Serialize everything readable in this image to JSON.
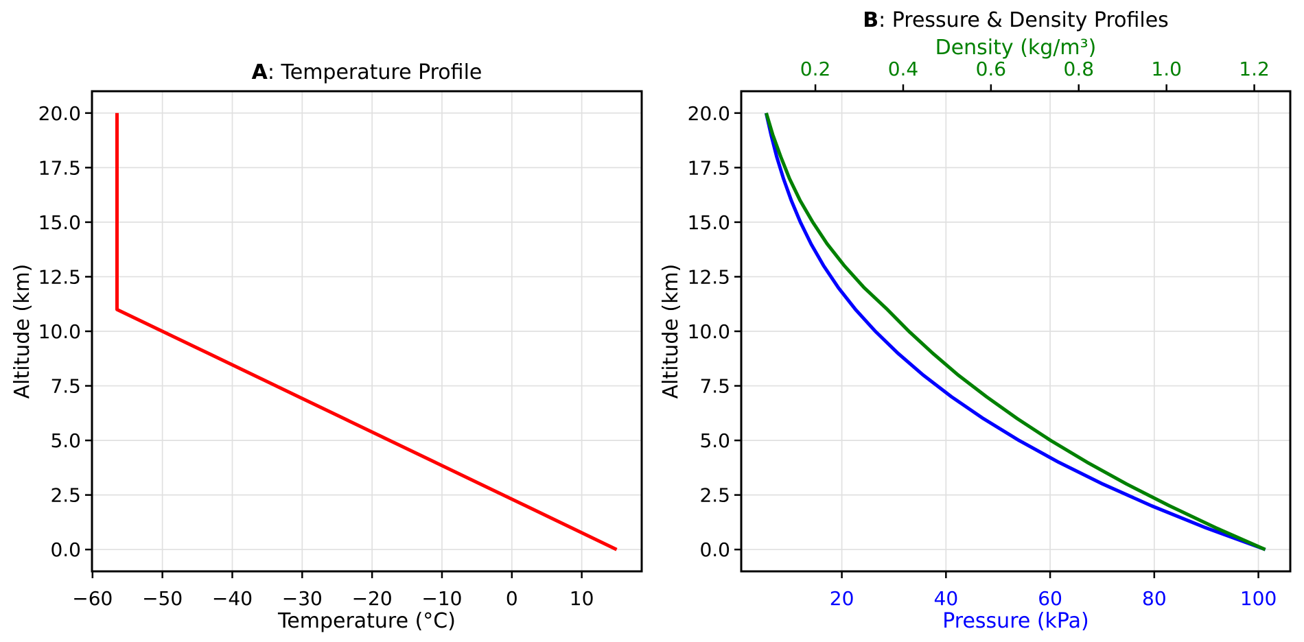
{
  "chart_data": [
    {
      "type": "line",
      "panel": "A",
      "title_prefix": "A",
      "title_rest": ": Temperature Profile",
      "xlabel": "Temperature (°C)",
      "ylabel": "Altitude (km)",
      "grid": true,
      "legend": "none",
      "axes": {
        "bottom": {
          "lim": [
            -60.08,
            18.58
          ],
          "ticks": [
            -60,
            -50,
            -40,
            -30,
            -20,
            -10,
            0,
            10
          ],
          "tick_labels": [
            "−60",
            "−50",
            "−40",
            "−30",
            "−20",
            "−10",
            "0",
            "10"
          ],
          "label_color": "#000000",
          "grid": true
        },
        "left": {
          "lim": [
            -1,
            21
          ],
          "ticks": [
            0,
            2.5,
            5,
            7.5,
            10,
            12.5,
            15,
            17.5,
            20
          ],
          "tick_labels": [
            "0.0",
            "2.5",
            "5.0",
            "7.5",
            "10.0",
            "12.5",
            "15.0",
            "17.5",
            "20.0"
          ],
          "label_color": "#000000",
          "grid": true
        }
      },
      "series": [
        {
          "name": "Temperature",
          "color": "#ff0000",
          "xaxis": "bottom",
          "linewidth": 5,
          "altitude_km": [
            0,
            1,
            2,
            3,
            4,
            5,
            6,
            7,
            8,
            9,
            10,
            11,
            12,
            13,
            14,
            15,
            16,
            17,
            18,
            19,
            20
          ],
          "values": [
            15,
            8.5,
            2,
            -4.5,
            -11,
            -17.5,
            -24,
            -30.5,
            -37,
            -43.5,
            -50,
            -56.5,
            -56.5,
            -56.5,
            -56.5,
            -56.5,
            -56.5,
            -56.5,
            -56.5,
            -56.5,
            -56.5
          ]
        }
      ]
    },
    {
      "type": "line",
      "panel": "B",
      "title_prefix": "B",
      "title_rest": ": Pressure & Density Profiles",
      "xlabel_bottom": "Pressure (kPa)",
      "xlabel_top": "Density (kg/m³)",
      "ylabel": "Altitude (km)",
      "grid": true,
      "legend": "none",
      "axes": {
        "bottom": {
          "lim": [
            0.68,
            106.12
          ],
          "ticks": [
            20,
            40,
            60,
            80,
            100
          ],
          "tick_labels": [
            "20",
            "40",
            "60",
            "80",
            "100"
          ],
          "label_color": "#0000ff",
          "grid": true
        },
        "top": {
          "lim": [
            0.031,
            1.282
          ],
          "ticks": [
            0.2,
            0.4,
            0.6,
            0.8,
            1.0,
            1.2
          ],
          "tick_labels": [
            "0.2",
            "0.4",
            "0.6",
            "0.8",
            "1.0",
            "1.2"
          ],
          "label_color": "#008000",
          "grid": false
        },
        "left": {
          "lim": [
            -1,
            21
          ],
          "ticks": [
            0,
            2.5,
            5,
            7.5,
            10,
            12.5,
            15,
            17.5,
            20
          ],
          "tick_labels": [
            "0.0",
            "2.5",
            "5.0",
            "7.5",
            "10.0",
            "12.5",
            "15.0",
            "17.5",
            "20.0"
          ],
          "label_color": "#000000",
          "grid": true
        }
      },
      "series": [
        {
          "name": "Pressure",
          "color": "#0000ff",
          "xaxis": "bottom",
          "linewidth": 5,
          "altitude_km": [
            0,
            1,
            2,
            3,
            4,
            5,
            6,
            7,
            8,
            9,
            10,
            11,
            12,
            13,
            14,
            15,
            16,
            17,
            18,
            19,
            20
          ],
          "values": [
            101.33,
            89.87,
            79.5,
            70.11,
            61.64,
            54.02,
            47.18,
            41.06,
            35.6,
            30.75,
            26.44,
            22.63,
            19.33,
            16.51,
            14.1,
            12.04,
            10.29,
            8.79,
            7.5,
            6.41,
            5.47
          ]
        },
        {
          "name": "Density",
          "color": "#008000",
          "xaxis": "top",
          "linewidth": 5,
          "altitude_km": [
            0,
            1,
            2,
            3,
            4,
            5,
            6,
            7,
            8,
            9,
            10,
            11,
            12,
            13,
            14,
            15,
            16,
            17,
            18,
            19,
            20
          ],
          "values": [
            1.225,
            1.112,
            1.007,
            0.909,
            0.819,
            0.736,
            0.66,
            0.59,
            0.525,
            0.467,
            0.413,
            0.364,
            0.311,
            0.266,
            0.227,
            0.194,
            0.165,
            0.141,
            0.121,
            0.103,
            0.088
          ]
        }
      ]
    }
  ]
}
